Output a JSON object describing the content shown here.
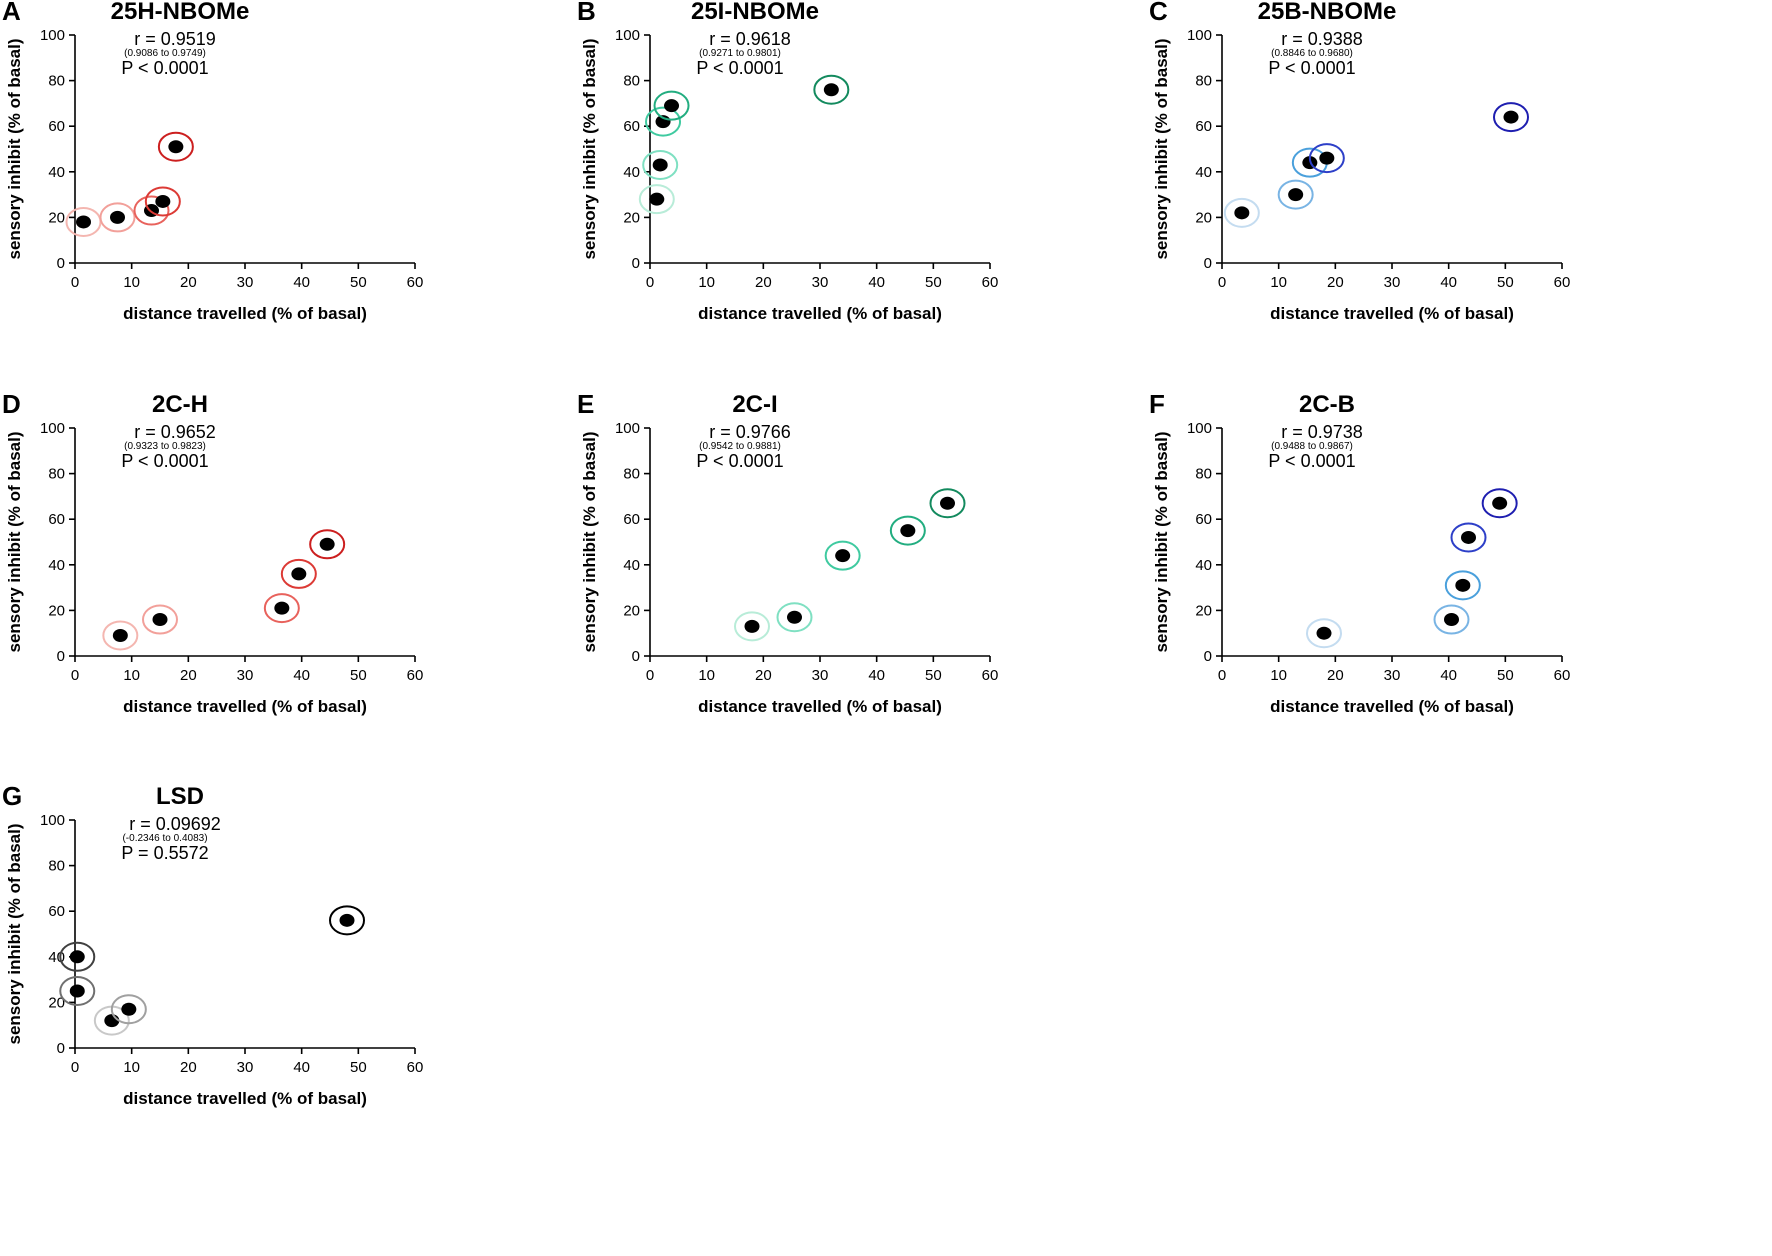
{
  "chart_data": [
    {
      "type": "scatter",
      "panel": "A",
      "title": "25H-NBOMe",
      "r": "r = 0.9519",
      "ci": "(0.9086 to 0.9749)",
      "p": "P < 0.0001",
      "xlabel": "distance travelled (% of basal)",
      "ylabel": "sensory inhibit (% of basal)",
      "xlim": [
        0,
        60
      ],
      "ylim": [
        0,
        100
      ],
      "xticks": [
        "0",
        "10",
        "20",
        "30",
        "40",
        "50",
        "60"
      ],
      "yticks": [
        "0",
        "20",
        "40",
        "60",
        "80",
        "100"
      ],
      "points": [
        {
          "x": 1.5,
          "y": 18,
          "color": "#f4b6b0"
        },
        {
          "x": 7.5,
          "y": 20,
          "color": "#f2a09a"
        },
        {
          "x": 13.5,
          "y": 23,
          "color": "#e8625c"
        },
        {
          "x": 15.5,
          "y": 27,
          "color": "#dc3a35"
        },
        {
          "x": 17.8,
          "y": 51,
          "color": "#cc1f1f"
        }
      ]
    },
    {
      "type": "scatter",
      "panel": "B",
      "title": "25I-NBOMe",
      "r": "r = 0.9618",
      "ci": "(0.9271 to 0.9801)",
      "p": "P < 0.0001",
      "xlabel": "distance travelled (% of basal)",
      "ylabel": "sensory inhibit (% of basal)",
      "xlim": [
        0,
        60
      ],
      "ylim": [
        0,
        100
      ],
      "xticks": [
        "0",
        "10",
        "20",
        "30",
        "40",
        "50",
        "60"
      ],
      "yticks": [
        "0",
        "20",
        "40",
        "60",
        "80",
        "100"
      ],
      "points": [
        {
          "x": 1.2,
          "y": 28,
          "color": "#b8ecd8"
        },
        {
          "x": 1.8,
          "y": 43,
          "color": "#7fe0c2"
        },
        {
          "x": 2.3,
          "y": 62,
          "color": "#3fcaa0"
        },
        {
          "x": 3.8,
          "y": 69,
          "color": "#22ad80"
        },
        {
          "x": 32.0,
          "y": 76,
          "color": "#138a5e"
        }
      ]
    },
    {
      "type": "scatter",
      "panel": "C",
      "title": "25B-NBOMe",
      "r": "r = 0.9388",
      "ci": "(0.8846 to 0.9680)",
      "p": "P < 0.0001",
      "xlabel": "distance travelled (% of basal)",
      "ylabel": "sensory inhibit (% of basal)",
      "xlim": [
        0,
        60
      ],
      "ylim": [
        0,
        100
      ],
      "xticks": [
        "0",
        "10",
        "20",
        "30",
        "40",
        "50",
        "60"
      ],
      "yticks": [
        "0",
        "20",
        "40",
        "60",
        "80",
        "100"
      ],
      "points": [
        {
          "x": 3.5,
          "y": 22,
          "color": "#c4dcf0"
        },
        {
          "x": 13.0,
          "y": 30,
          "color": "#79b4e4"
        },
        {
          "x": 15.5,
          "y": 44,
          "color": "#4aa0dc"
        },
        {
          "x": 18.5,
          "y": 46,
          "color": "#2d3fc8"
        },
        {
          "x": 51.0,
          "y": 64,
          "color": "#1e1eb0"
        }
      ]
    },
    {
      "type": "scatter",
      "panel": "D",
      "title": "2C-H",
      "r": "r = 0.9652",
      "ci": "(0.9323 to 0.9823)",
      "p": "P < 0.0001",
      "xlabel": "distance travelled (% of basal)",
      "ylabel": "sensory inhibit (% of basal)",
      "xlim": [
        0,
        60
      ],
      "ylim": [
        0,
        100
      ],
      "xticks": [
        "0",
        "10",
        "20",
        "30",
        "40",
        "50",
        "60"
      ],
      "yticks": [
        "0",
        "20",
        "40",
        "60",
        "80",
        "100"
      ],
      "points": [
        {
          "x": 8.0,
          "y": 9,
          "color": "#f4b6b0"
        },
        {
          "x": 15.0,
          "y": 16,
          "color": "#f2a09a"
        },
        {
          "x": 36.5,
          "y": 21,
          "color": "#e8625c"
        },
        {
          "x": 39.5,
          "y": 36,
          "color": "#dc3a35"
        },
        {
          "x": 44.5,
          "y": 49,
          "color": "#cc1f1f"
        }
      ]
    },
    {
      "type": "scatter",
      "panel": "E",
      "title": "2C-I",
      "r": "r = 0.9766",
      "ci": "(0.9542 to 0.9881)",
      "p": "P < 0.0001",
      "xlabel": "distance travelled (% of basal)",
      "ylabel": "sensory inhibit (% of basal)",
      "xlim": [
        0,
        60
      ],
      "ylim": [
        0,
        100
      ],
      "xticks": [
        "0",
        "10",
        "20",
        "30",
        "40",
        "50",
        "60"
      ],
      "yticks": [
        "0",
        "20",
        "40",
        "60",
        "80",
        "100"
      ],
      "points": [
        {
          "x": 18.0,
          "y": 13,
          "color": "#b8ecd8"
        },
        {
          "x": 25.5,
          "y": 17,
          "color": "#7fe0c2"
        },
        {
          "x": 34.0,
          "y": 44,
          "color": "#3fcaa0"
        },
        {
          "x": 45.5,
          "y": 55,
          "color": "#22ad80"
        },
        {
          "x": 52.5,
          "y": 67,
          "color": "#138a5e"
        }
      ]
    },
    {
      "type": "scatter",
      "panel": "F",
      "title": "2C-B",
      "r": "r = 0.9738",
      "ci": "(0.9488 to 0.9867)",
      "p": "P < 0.0001",
      "xlabel": "distance travelled (% of basal)",
      "ylabel": "sensory inhibit (% of basal)",
      "xlim": [
        0,
        60
      ],
      "ylim": [
        0,
        100
      ],
      "xticks": [
        "0",
        "10",
        "20",
        "30",
        "40",
        "50",
        "60"
      ],
      "yticks": [
        "0",
        "20",
        "40",
        "60",
        "80",
        "100"
      ],
      "points": [
        {
          "x": 18.0,
          "y": 10,
          "color": "#c4dcf0"
        },
        {
          "x": 40.5,
          "y": 16,
          "color": "#79b4e4"
        },
        {
          "x": 42.5,
          "y": 31,
          "color": "#4aa0dc"
        },
        {
          "x": 43.5,
          "y": 52,
          "color": "#2d3fc8"
        },
        {
          "x": 49.0,
          "y": 67,
          "color": "#1e1eb0"
        }
      ]
    },
    {
      "type": "scatter",
      "panel": "G",
      "title": "LSD",
      "r": "r = 0.09692",
      "ci": "(-0.2346 to 0.4083)",
      "p": "P = 0.5572",
      "xlabel": "distance travelled (% of basal)",
      "ylabel": "sensory inhibit (% of basal)",
      "xlim": [
        0,
        60
      ],
      "ylim": [
        0,
        100
      ],
      "xticks": [
        "0",
        "10",
        "20",
        "30",
        "40",
        "50",
        "60"
      ],
      "yticks": [
        "0",
        "20",
        "40",
        "60",
        "80",
        "100"
      ],
      "points": [
        {
          "x": 6.5,
          "y": 12,
          "color": "#c8c8c8"
        },
        {
          "x": 9.5,
          "y": 17,
          "color": "#a0a0a0"
        },
        {
          "x": 0.4,
          "y": 25,
          "color": "#707070"
        },
        {
          "x": 0.4,
          "y": 40,
          "color": "#404040"
        },
        {
          "x": 48.0,
          "y": 56,
          "color": "#000000"
        }
      ]
    }
  ]
}
